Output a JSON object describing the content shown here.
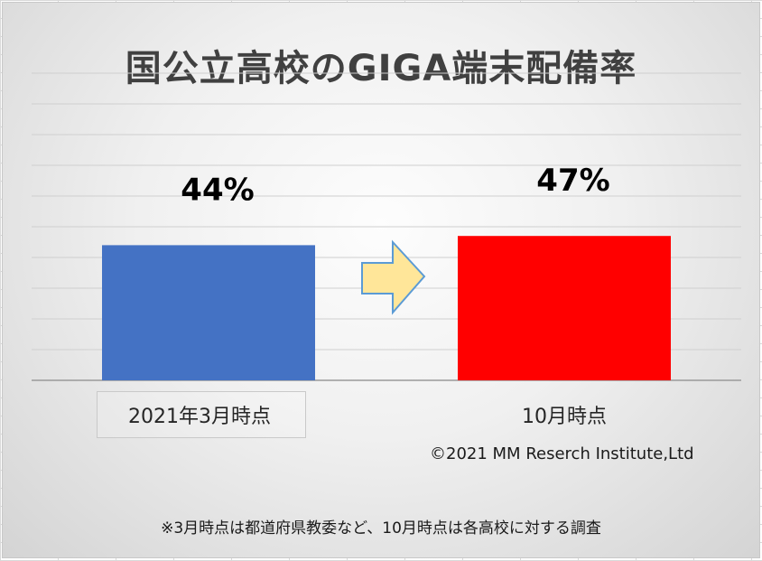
{
  "chart_data": {
    "type": "bar",
    "title": "国公立高校のGIGA端末配備率",
    "categories": [
      "2021年3月時点",
      "10月時点"
    ],
    "values": [
      44,
      47
    ],
    "value_labels": [
      "44%",
      "47%"
    ],
    "colors": [
      "#4472C4",
      "#FF0000"
    ],
    "ylim": [
      0,
      100
    ],
    "grid": true,
    "legend": "none"
  },
  "copyright": "©2021 MM Reserch Institute,Ltd",
  "footnote": "※3月時点は都道府県教委など、10月時点は各高校に対する調査",
  "arrow_color": "#FFE699"
}
